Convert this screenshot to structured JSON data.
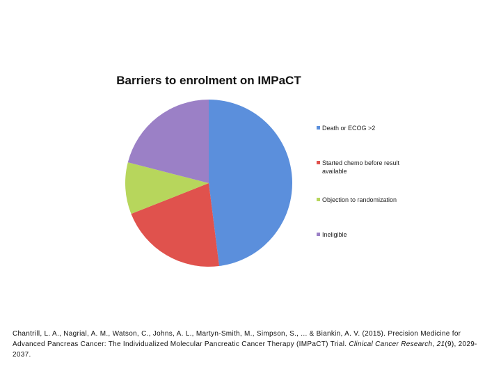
{
  "chart_data": {
    "type": "pie",
    "title": "Barriers to enrolment on IMPaCT",
    "categories": [
      "Death or ECOG >2",
      "Started chemo before result available",
      "Objection to randomization",
      "Ineligible"
    ],
    "values": [
      48,
      21,
      10,
      21
    ],
    "colors": [
      "#5b8fdc",
      "#e0524d",
      "#b7d65c",
      "#9b80c6"
    ],
    "legend": "right"
  },
  "citation": {
    "text": "Chantrill, L. A., Nagrial, A. M., Watson, C., Johns, A. L., Martyn-Smith, M., Simpson, S., ... & Biankin, A. V. (2015). Precision Medicine for Advanced Pancreas Cancer: The Individualized Molecular Pancreatic Cancer Therapy (IMPaCT) Trial. ",
    "journal": "Clinical Cancer Research",
    "separator": ", ",
    "volume": "21",
    "pages": "(9), 2029-2037."
  }
}
